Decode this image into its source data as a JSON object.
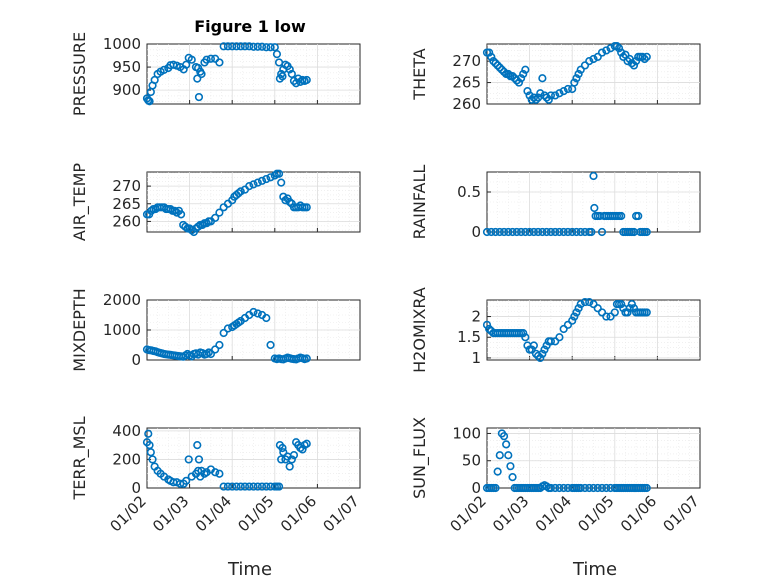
{
  "figure": {
    "title": "Figure 1 low",
    "xlabel": "Time",
    "x_tick_labels": [
      "01/02",
      "01/03",
      "01/04",
      "01/05",
      "01/06",
      "01/07"
    ],
    "marker_color": "#0072BD"
  },
  "chart_data": [
    {
      "type": "scatter",
      "ylabel": "PRESSURE",
      "ylim": [
        870,
        1000
      ],
      "yticks": [
        900,
        950,
        1000
      ],
      "xlim": [
        0,
        5
      ],
      "grid": true,
      "x": [
        0.0,
        0.03,
        0.06,
        0.09,
        0.13,
        0.18,
        0.25,
        0.32,
        0.4,
        0.5,
        0.55,
        0.62,
        0.7,
        0.78,
        0.86,
        0.92,
        0.98,
        1.05,
        1.15,
        1.18,
        1.2,
        1.22,
        1.25,
        1.28,
        1.35,
        1.4,
        1.5,
        1.6,
        1.7,
        1.8,
        1.9,
        2.0,
        2.1,
        2.2,
        2.3,
        2.4,
        2.5,
        2.6,
        2.7,
        2.8,
        2.9,
        3.0,
        3.05,
        3.1,
        3.12,
        3.15,
        3.18,
        3.2,
        3.25,
        3.3,
        3.35,
        3.4,
        3.45,
        3.5,
        3.55,
        3.6,
        3.65,
        3.7,
        3.75
      ],
      "y": [
        882,
        878,
        876,
        896,
        910,
        922,
        935,
        940,
        944,
        948,
        954,
        955,
        953,
        950,
        945,
        955,
        970,
        966,
        950,
        925,
        948,
        885,
        940,
        935,
        960,
        966,
        968,
        968,
        960,
        995,
        995,
        995,
        995,
        995,
        995,
        995,
        994,
        994,
        994,
        993,
        993,
        993,
        978,
        960,
        925,
        935,
        930,
        945,
        955,
        952,
        945,
        935,
        920,
        915,
        925,
        918,
        922,
        920,
        922
      ]
    },
    {
      "type": "scatter",
      "ylabel": "THETA",
      "ylim": [
        260,
        274
      ],
      "yticks": [
        260,
        265,
        270
      ],
      "xlim": [
        0,
        5
      ],
      "grid": true,
      "x": [
        0.0,
        0.05,
        0.1,
        0.15,
        0.2,
        0.25,
        0.3,
        0.35,
        0.4,
        0.45,
        0.5,
        0.55,
        0.6,
        0.65,
        0.7,
        0.75,
        0.8,
        0.85,
        0.9,
        0.95,
        1.0,
        1.05,
        1.1,
        1.15,
        1.2,
        1.25,
        1.3,
        1.35,
        1.4,
        1.45,
        1.5,
        1.6,
        1.7,
        1.8,
        1.9,
        2.0,
        2.05,
        2.1,
        2.15,
        2.2,
        2.3,
        2.4,
        2.5,
        2.6,
        2.7,
        2.8,
        2.9,
        3.0,
        3.05,
        3.1,
        3.15,
        3.2,
        3.25,
        3.3,
        3.35,
        3.4,
        3.45,
        3.5,
        3.55,
        3.6,
        3.65,
        3.7,
        3.75
      ],
      "y": [
        272,
        272,
        271,
        270,
        269.5,
        269,
        268.5,
        268,
        267.5,
        267,
        267,
        266.5,
        266.5,
        266,
        265.5,
        265,
        266,
        267,
        268,
        263,
        262,
        261,
        261.5,
        261,
        261.5,
        262.5,
        266,
        262,
        261.5,
        261,
        262,
        262,
        262.5,
        263,
        263.5,
        263.5,
        265,
        266,
        267,
        268,
        269,
        270,
        270.5,
        271,
        272,
        272.5,
        273,
        273.5,
        273.5,
        273,
        272,
        271,
        271.5,
        270,
        270.5,
        269.5,
        269,
        270,
        271,
        271,
        271,
        270.5,
        271
      ]
    },
    {
      "type": "scatter",
      "ylabel": "AIR_TEMP",
      "ylim": [
        257,
        274
      ],
      "yticks": [
        260,
        265,
        270
      ],
      "xlim": [
        0,
        5
      ],
      "grid": true,
      "x": [
        0.0,
        0.05,
        0.1,
        0.15,
        0.2,
        0.25,
        0.3,
        0.35,
        0.4,
        0.45,
        0.5,
        0.55,
        0.6,
        0.65,
        0.7,
        0.75,
        0.8,
        0.85,
        0.9,
        0.95,
        1.0,
        1.05,
        1.1,
        1.15,
        1.2,
        1.25,
        1.3,
        1.35,
        1.4,
        1.45,
        1.5,
        1.6,
        1.7,
        1.8,
        1.9,
        2.0,
        2.05,
        2.1,
        2.15,
        2.2,
        2.3,
        2.4,
        2.5,
        2.6,
        2.7,
        2.8,
        2.9,
        3.0,
        3.05,
        3.1,
        3.15,
        3.2,
        3.25,
        3.3,
        3.35,
        3.4,
        3.45,
        3.5,
        3.55,
        3.6,
        3.65,
        3.7,
        3.75
      ],
      "y": [
        262,
        262,
        263,
        263.5,
        263.5,
        264,
        264,
        264,
        264,
        263.5,
        263.5,
        263.5,
        263,
        263,
        262.5,
        263,
        262,
        259,
        258.5,
        258,
        258,
        257.5,
        257,
        258,
        258.5,
        259,
        259,
        259.5,
        259.5,
        260,
        260,
        261,
        262.5,
        264,
        265,
        266,
        267,
        267.5,
        268,
        268.5,
        269,
        270,
        270.5,
        271,
        271.5,
        272,
        272.5,
        273,
        273.5,
        273.5,
        271,
        267,
        266,
        266.5,
        265.5,
        265,
        264,
        264,
        264,
        264.5,
        264,
        264,
        264
      ]
    },
    {
      "type": "scatter",
      "ylabel": "RAINFALL",
      "ylim": [
        0,
        0.75
      ],
      "yticks": [
        0,
        0.5
      ],
      "xlim": [
        0,
        5
      ],
      "grid": true,
      "x": [
        0.0,
        0.1,
        0.2,
        0.3,
        0.4,
        0.5,
        0.6,
        0.7,
        0.8,
        0.9,
        1.0,
        1.1,
        1.2,
        1.3,
        1.4,
        1.5,
        1.6,
        1.7,
        1.8,
        1.9,
        2.0,
        2.1,
        2.2,
        2.3,
        2.4,
        2.45,
        2.5,
        2.52,
        2.55,
        2.6,
        2.65,
        2.7,
        2.75,
        2.8,
        2.85,
        2.9,
        2.95,
        3.0,
        3.05,
        3.1,
        3.15,
        3.2,
        3.25,
        3.3,
        3.35,
        3.4,
        3.45,
        3.5,
        3.55,
        3.6,
        3.65,
        3.7,
        3.75
      ],
      "y": [
        0,
        0,
        0,
        0,
        0,
        0,
        0,
        0,
        0,
        0,
        0,
        0,
        0,
        0,
        0,
        0,
        0,
        0,
        0,
        0,
        0,
        0,
        0,
        0,
        0,
        0,
        0.7,
        0.3,
        0.2,
        0.2,
        0.2,
        0,
        0.2,
        0.2,
        0.2,
        0.2,
        0.2,
        0.2,
        0.2,
        0.2,
        0.2,
        0,
        0,
        0,
        0,
        0,
        0,
        0.2,
        0.2,
        0,
        0,
        0,
        0
      ]
    },
    {
      "type": "scatter",
      "ylabel": "MIXDEPTH",
      "ylim": [
        0,
        2000
      ],
      "yticks": [
        0,
        1000,
        2000
      ],
      "xlim": [
        0,
        5
      ],
      "grid": true,
      "x": [
        0.0,
        0.05,
        0.1,
        0.15,
        0.2,
        0.25,
        0.3,
        0.35,
        0.4,
        0.45,
        0.5,
        0.55,
        0.6,
        0.65,
        0.7,
        0.75,
        0.8,
        0.85,
        0.9,
        0.95,
        1.0,
        1.05,
        1.1,
        1.15,
        1.2,
        1.25,
        1.3,
        1.35,
        1.4,
        1.45,
        1.5,
        1.6,
        1.7,
        1.8,
        1.9,
        2.0,
        2.05,
        2.1,
        2.15,
        2.2,
        2.3,
        2.4,
        2.5,
        2.6,
        2.7,
        2.8,
        2.9,
        3.0,
        3.05,
        3.1,
        3.15,
        3.2,
        3.25,
        3.3,
        3.35,
        3.4,
        3.45,
        3.5,
        3.55,
        3.6,
        3.65,
        3.7,
        3.75
      ],
      "y": [
        350,
        330,
        320,
        300,
        290,
        260,
        240,
        220,
        200,
        190,
        180,
        170,
        160,
        150,
        140,
        130,
        120,
        110,
        150,
        200,
        150,
        120,
        200,
        220,
        180,
        250,
        230,
        180,
        200,
        250,
        200,
        350,
        500,
        900,
        1050,
        1100,
        1150,
        1200,
        1250,
        1300,
        1400,
        1500,
        1600,
        1550,
        1500,
        1400,
        500,
        50,
        30,
        50,
        30,
        20,
        50,
        80,
        60,
        40,
        30,
        20,
        50,
        80,
        60,
        30,
        50
      ]
    },
    {
      "type": "scatter",
      "ylabel": "H2OMIXRA",
      "ylim": [
        0.95,
        2.4
      ],
      "yticks": [
        1,
        1.5,
        2
      ],
      "xlim": [
        0,
        5
      ],
      "grid": true,
      "x": [
        0.0,
        0.05,
        0.1,
        0.15,
        0.2,
        0.25,
        0.3,
        0.35,
        0.4,
        0.45,
        0.5,
        0.55,
        0.6,
        0.65,
        0.7,
        0.75,
        0.8,
        0.85,
        0.9,
        0.95,
        1.0,
        1.05,
        1.1,
        1.15,
        1.2,
        1.25,
        1.3,
        1.35,
        1.4,
        1.45,
        1.5,
        1.6,
        1.7,
        1.8,
        1.9,
        2.0,
        2.05,
        2.1,
        2.15,
        2.2,
        2.3,
        2.4,
        2.5,
        2.6,
        2.7,
        2.8,
        2.9,
        3.0,
        3.05,
        3.1,
        3.15,
        3.2,
        3.25,
        3.3,
        3.35,
        3.4,
        3.45,
        3.5,
        3.55,
        3.6,
        3.65,
        3.7,
        3.75
      ],
      "y": [
        1.8,
        1.7,
        1.65,
        1.6,
        1.6,
        1.6,
        1.6,
        1.6,
        1.6,
        1.6,
        1.6,
        1.6,
        1.6,
        1.6,
        1.6,
        1.6,
        1.6,
        1.6,
        1.5,
        1.3,
        1.2,
        1.2,
        1.3,
        1.1,
        1.05,
        1.0,
        1.1,
        1.2,
        1.3,
        1.4,
        1.4,
        1.4,
        1.5,
        1.7,
        1.8,
        1.9,
        2.0,
        2.1,
        2.2,
        2.3,
        2.35,
        2.35,
        2.3,
        2.2,
        2.1,
        2.0,
        2.0,
        2.1,
        2.3,
        2.3,
        2.3,
        2.2,
        2.1,
        2.1,
        2.2,
        2.3,
        2.2,
        2.1,
        2.1,
        2.1,
        2.1,
        2.1,
        2.1
      ]
    },
    {
      "type": "scatter",
      "ylabel": "TERR_MSL",
      "ylim": [
        0,
        420
      ],
      "yticks": [
        0,
        200,
        400
      ],
      "xlim": [
        0,
        5
      ],
      "grid": true,
      "x": [
        0.0,
        0.03,
        0.06,
        0.09,
        0.13,
        0.18,
        0.25,
        0.32,
        0.4,
        0.5,
        0.55,
        0.62,
        0.7,
        0.78,
        0.86,
        0.92,
        0.98,
        1.05,
        1.15,
        1.18,
        1.2,
        1.22,
        1.25,
        1.28,
        1.35,
        1.4,
        1.5,
        1.6,
        1.7,
        1.8,
        1.9,
        2.0,
        2.1,
        2.2,
        2.3,
        2.4,
        2.5,
        2.6,
        2.7,
        2.8,
        2.9,
        3.0,
        3.05,
        3.1,
        3.12,
        3.15,
        3.18,
        3.2,
        3.25,
        3.3,
        3.35,
        3.4,
        3.45,
        3.5,
        3.55,
        3.6,
        3.65,
        3.7,
        3.75
      ],
      "y": [
        320,
        380,
        300,
        250,
        200,
        150,
        120,
        100,
        80,
        60,
        50,
        40,
        40,
        30,
        30,
        50,
        200,
        80,
        100,
        300,
        120,
        200,
        80,
        120,
        100,
        110,
        130,
        110,
        100,
        10,
        10,
        10,
        10,
        10,
        10,
        10,
        10,
        10,
        10,
        10,
        10,
        10,
        10,
        10,
        300,
        200,
        280,
        250,
        200,
        220,
        150,
        200,
        230,
        320,
        300,
        280,
        270,
        300,
        310
      ]
    },
    {
      "type": "scatter",
      "ylabel": "SUN_FLUX",
      "ylim": [
        0,
        110
      ],
      "yticks": [
        0,
        50,
        100
      ],
      "xlim": [
        0,
        5
      ],
      "grid": true,
      "x": [
        0.0,
        0.05,
        0.1,
        0.15,
        0.2,
        0.25,
        0.3,
        0.35,
        0.4,
        0.45,
        0.5,
        0.55,
        0.6,
        0.65,
        0.7,
        0.75,
        0.8,
        0.85,
        0.9,
        0.95,
        1.0,
        1.05,
        1.1,
        1.15,
        1.2,
        1.25,
        1.3,
        1.35,
        1.4,
        1.45,
        1.5,
        1.6,
        1.7,
        1.8,
        1.9,
        2.0,
        2.05,
        2.1,
        2.15,
        2.2,
        2.3,
        2.4,
        2.5,
        2.6,
        2.7,
        2.8,
        2.9,
        3.0,
        3.05,
        3.1,
        3.15,
        3.2,
        3.25,
        3.3,
        3.35,
        3.4,
        3.45,
        3.5,
        3.55,
        3.6,
        3.65,
        3.7,
        3.75
      ],
      "y": [
        0,
        0,
        0,
        0,
        0,
        30,
        60,
        100,
        95,
        80,
        60,
        40,
        20,
        0,
        0,
        0,
        0,
        0,
        0,
        0,
        0,
        0,
        0,
        0,
        0,
        0,
        3,
        5,
        3,
        0,
        0,
        0,
        0,
        0,
        0,
        0,
        0,
        0,
        0,
        0,
        0,
        0,
        0,
        0,
        0,
        0,
        0,
        0,
        0,
        0,
        0,
        0,
        0,
        0,
        0,
        0,
        0,
        0,
        0,
        0,
        0,
        0,
        0
      ]
    }
  ]
}
